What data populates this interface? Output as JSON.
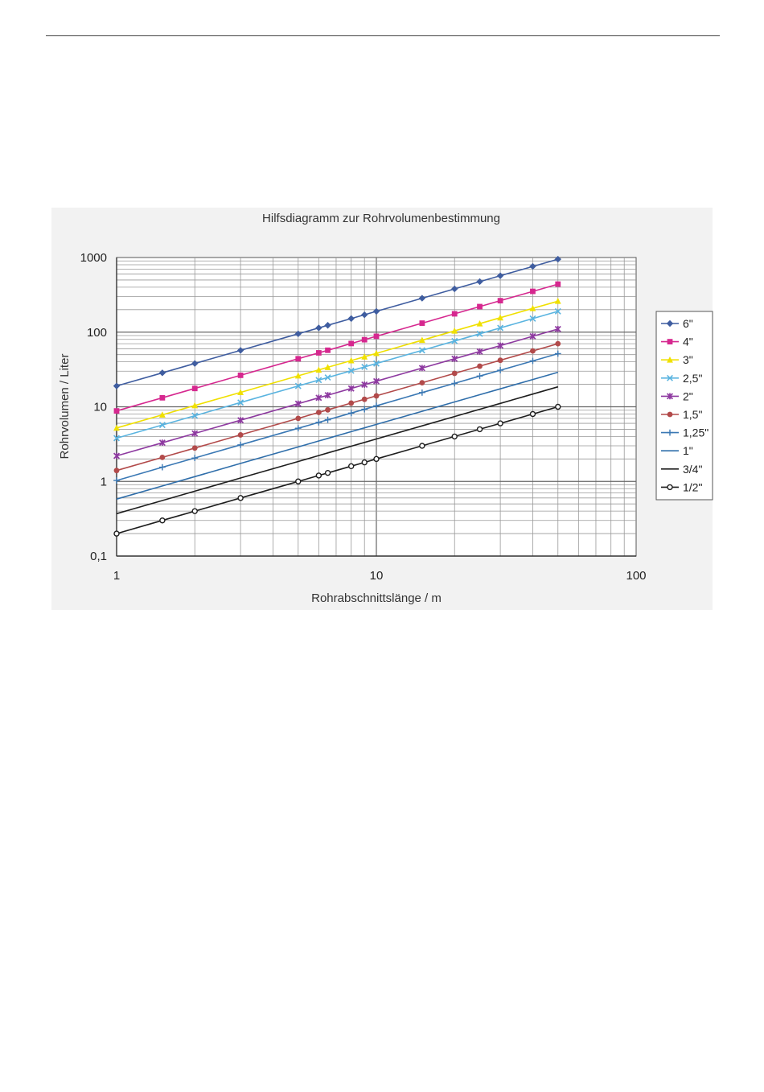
{
  "chart_data": {
    "type": "line",
    "title": "Hilfsdiagramm zur Rohrvolumenbestimmung",
    "xlabel": "Rohrabschnittslänge / m",
    "ylabel": "Rohrvolumen / Liter",
    "xscale": "log",
    "yscale": "log",
    "xlim": [
      1,
      100
    ],
    "ylim": [
      0.1,
      1000
    ],
    "x_ticks": [
      "1",
      "10",
      "100"
    ],
    "y_ticks": [
      "0,1",
      "1",
      "10",
      "100",
      "1000"
    ],
    "grid": true,
    "legend_position": "right",
    "series": [
      {
        "name": "6\"",
        "color": "#3f5da0",
        "marker": "diamond",
        "x": [
          1,
          1.5,
          2,
          3,
          5,
          6,
          6.5,
          8,
          9,
          10,
          15,
          20,
          25,
          30,
          40,
          50
        ],
        "values": [
          19,
          28.5,
          38,
          57,
          95,
          114,
          123.5,
          152,
          171,
          190,
          285,
          380,
          475,
          570,
          760,
          950
        ]
      },
      {
        "name": "4\"",
        "color": "#d6288f",
        "marker": "square",
        "x": [
          1,
          1.5,
          2,
          3,
          5,
          6,
          6.5,
          8,
          9,
          10,
          15,
          20,
          25,
          30,
          40,
          50
        ],
        "values": [
          8.8,
          13.2,
          17.6,
          26.4,
          44,
          52.8,
          57.2,
          70.4,
          79.2,
          88,
          132,
          176,
          220,
          264,
          352,
          440
        ]
      },
      {
        "name": "3\"",
        "color": "#f0e000",
        "marker": "triangle",
        "x": [
          1,
          1.5,
          2,
          3,
          5,
          6,
          6.5,
          8,
          9,
          10,
          15,
          20,
          25,
          30,
          40,
          50
        ],
        "values": [
          5.2,
          7.8,
          10.4,
          15.6,
          26,
          31.2,
          33.8,
          41.6,
          46.8,
          52,
          78,
          104,
          130,
          156,
          208,
          260
        ]
      },
      {
        "name": "2,5\"",
        "color": "#5ab4e0",
        "marker": "x",
        "x": [
          1,
          1.5,
          2,
          3,
          5,
          6,
          6.5,
          8,
          9,
          10,
          15,
          20,
          25,
          30,
          40,
          50
        ],
        "values": [
          3.8,
          5.7,
          7.6,
          11.4,
          19,
          22.8,
          24.7,
          30.4,
          34.2,
          38,
          57,
          76,
          95,
          114,
          152,
          190
        ]
      },
      {
        "name": "2\"",
        "color": "#8e3aa0",
        "marker": "star",
        "x": [
          1,
          1.5,
          2,
          3,
          5,
          6,
          6.5,
          8,
          9,
          10,
          15,
          20,
          25,
          30,
          40,
          50
        ],
        "values": [
          2.2,
          3.3,
          4.4,
          6.6,
          11,
          13.2,
          14.3,
          17.6,
          19.8,
          22,
          33,
          44,
          55,
          66,
          88,
          110
        ]
      },
      {
        "name": "1,5\"",
        "color": "#b24a4a",
        "marker": "circle",
        "x": [
          1,
          1.5,
          2,
          3,
          5,
          6,
          6.5,
          8,
          9,
          10,
          15,
          20,
          25,
          30,
          40,
          50
        ],
        "values": [
          1.4,
          2.1,
          2.8,
          4.2,
          7,
          8.4,
          9.1,
          11.2,
          12.6,
          14,
          21,
          28,
          35,
          42,
          56,
          70
        ]
      },
      {
        "name": "1,25\"",
        "color": "#3a78b4",
        "marker": "plus",
        "x": [
          1,
          1.5,
          2,
          3,
          5,
          6,
          6.5,
          8,
          9,
          10,
          15,
          20,
          25,
          30,
          40,
          50
        ],
        "values": [
          1.03,
          1.55,
          2.06,
          3.09,
          5.15,
          6.18,
          6.7,
          8.24,
          9.27,
          10.3,
          15.5,
          20.6,
          25.8,
          30.9,
          41.2,
          51.5
        ]
      },
      {
        "name": "1\"",
        "color": "#2f6eaa",
        "marker": "dash",
        "x": [
          1,
          1.5,
          2,
          3,
          5,
          6,
          6.5,
          8,
          9,
          10,
          15,
          20,
          25,
          30,
          40,
          50
        ],
        "values": [
          0.58,
          0.87,
          1.16,
          1.74,
          2.9,
          3.48,
          3.77,
          4.64,
          5.22,
          5.8,
          8.7,
          11.6,
          14.5,
          17.4,
          23.2,
          29
        ]
      },
      {
        "name": "3/4\"",
        "color": "#1e1e1e",
        "marker": "dash",
        "x": [
          1,
          1.5,
          2,
          3,
          5,
          6,
          6.5,
          8,
          9,
          10,
          15,
          20,
          25,
          30,
          40,
          50
        ],
        "values": [
          0.37,
          0.555,
          0.74,
          1.11,
          1.85,
          2.22,
          2.41,
          2.96,
          3.33,
          3.7,
          5.55,
          7.4,
          9.25,
          11.1,
          14.8,
          18.5
        ]
      },
      {
        "name": "1/2\"",
        "color": "#1e1e1e",
        "marker": "open-circle",
        "x": [
          1,
          1.5,
          2,
          3,
          5,
          6,
          6.5,
          8,
          9,
          10,
          15,
          20,
          25,
          30,
          40,
          50
        ],
        "values": [
          0.2,
          0.3,
          0.4,
          0.6,
          1,
          1.2,
          1.3,
          1.6,
          1.8,
          2,
          3,
          4,
          5,
          6,
          8,
          10
        ]
      }
    ]
  }
}
